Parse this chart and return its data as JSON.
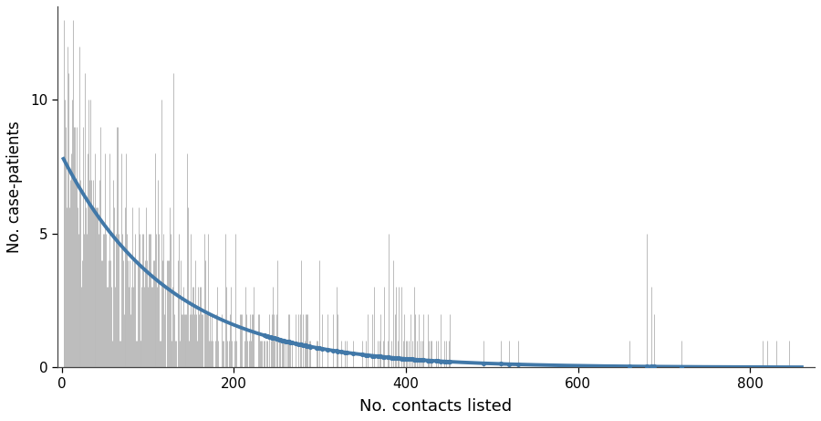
{
  "xlabel": "No. contacts listed",
  "ylabel": "No. case-patients",
  "xlim": [
    -5,
    875
  ],
  "ylim": [
    0,
    13.5
  ],
  "yticks": [
    0,
    5,
    10
  ],
  "xticks": [
    0,
    200,
    400,
    600,
    800
  ],
  "stem_color": "#bbbbbb",
  "curve_color": "#4178a8",
  "figsize": [
    9.0,
    4.61
  ],
  "dpi": 100,
  "xlabel_fontsize": 13,
  "ylabel_fontsize": 12,
  "tick_fontsize": 11,
  "geom_p": 0.008,
  "A": 7.8,
  "x_start": 2,
  "x_max_obs": 855,
  "background_color": "#ffffff",
  "spine_color": "#444444",
  "seed": 17
}
